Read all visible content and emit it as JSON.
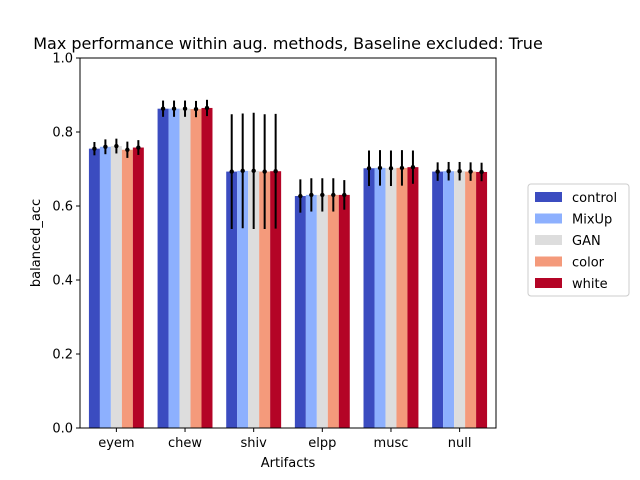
{
  "chart_data": {
    "type": "bar",
    "title": "Max performance within aug. methods, Baseline excluded: True",
    "xlabel": "Artifacts",
    "ylabel": "balanced_acc",
    "ylim": [
      0,
      1.0
    ],
    "yticks": [
      "0.0",
      "0.2",
      "0.4",
      "0.6",
      "0.8",
      "1.0"
    ],
    "categories": [
      "eyem",
      "chew",
      "shiv",
      "elpp",
      "musc",
      "null"
    ],
    "legend_position": "outside-right",
    "grid": false,
    "series": [
      {
        "name": "control",
        "color": "#3b4cc0",
        "values": [
          0.755,
          0.863,
          0.693,
          0.627,
          0.702,
          0.693
        ],
        "errors": [
          0.018,
          0.022,
          0.155,
          0.045,
          0.048,
          0.025
        ]
      },
      {
        "name": "MixUp",
        "color": "#8db0fe",
        "values": [
          0.76,
          0.863,
          0.695,
          0.63,
          0.703,
          0.694
        ],
        "errors": [
          0.02,
          0.022,
          0.155,
          0.045,
          0.048,
          0.025
        ]
      },
      {
        "name": "GAN",
        "color": "#dddddd",
        "values": [
          0.762,
          0.863,
          0.695,
          0.63,
          0.702,
          0.694
        ],
        "errors": [
          0.02,
          0.022,
          0.157,
          0.045,
          0.048,
          0.025
        ]
      },
      {
        "name": "color",
        "color": "#f49a7b",
        "values": [
          0.752,
          0.862,
          0.693,
          0.63,
          0.703,
          0.693
        ],
        "errors": [
          0.022,
          0.022,
          0.155,
          0.045,
          0.048,
          0.025
        ]
      },
      {
        "name": "white",
        "color": "#b40426",
        "values": [
          0.758,
          0.865,
          0.694,
          0.63,
          0.705,
          0.692
        ],
        "errors": [
          0.02,
          0.022,
          0.155,
          0.04,
          0.045,
          0.025
        ]
      }
    ]
  }
}
